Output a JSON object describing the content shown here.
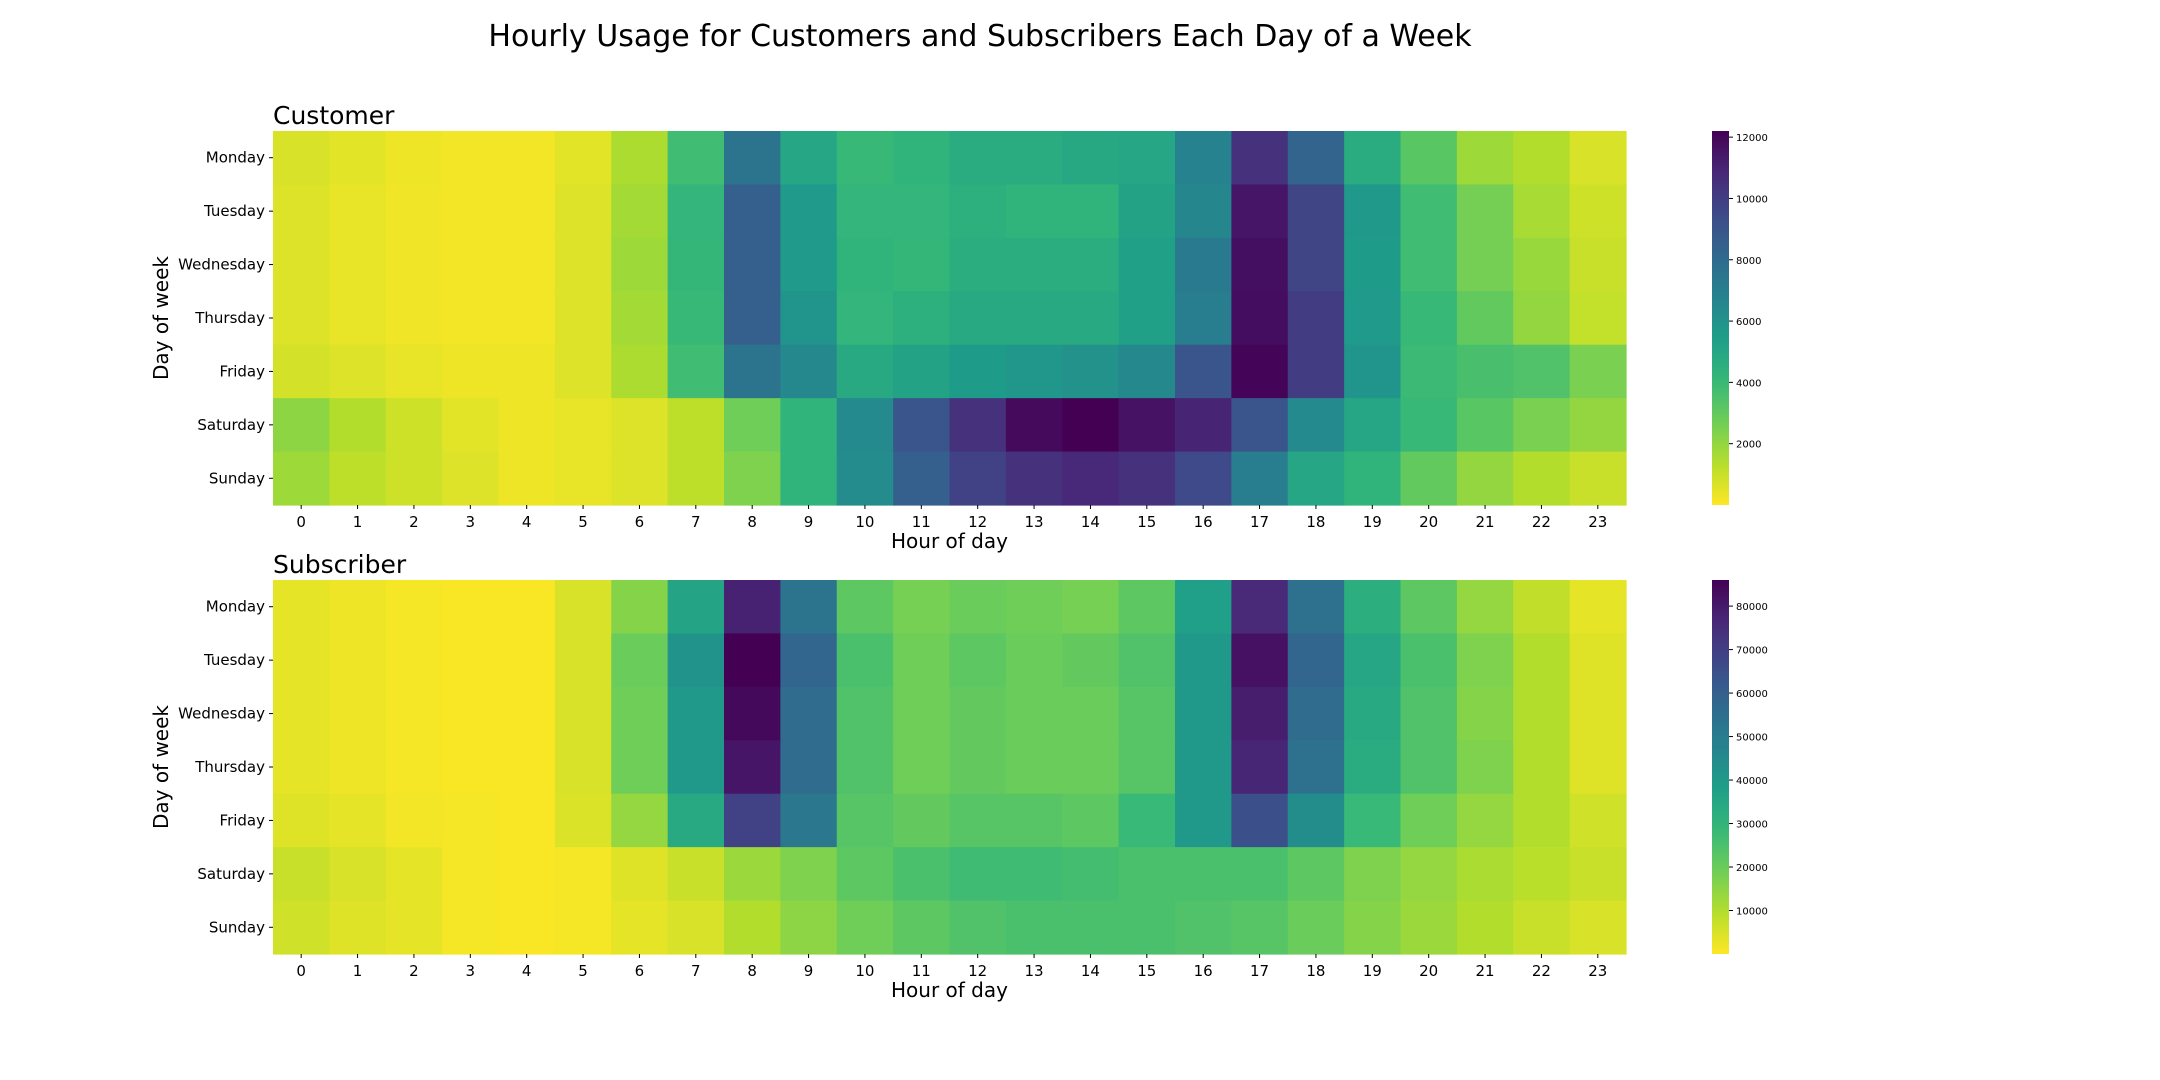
{
  "figure": {
    "title": "Hourly Usage for Customers and Subscribers Each Day of a Week"
  },
  "chart_data": [
    {
      "type": "heatmap",
      "title": "Customer",
      "xlabel": "Hour of day",
      "ylabel": "Day of week",
      "x": [
        "0",
        "1",
        "2",
        "3",
        "4",
        "5",
        "6",
        "7",
        "8",
        "9",
        "10",
        "11",
        "12",
        "13",
        "14",
        "15",
        "16",
        "17",
        "18",
        "19",
        "20",
        "21",
        "22",
        "23"
      ],
      "y": [
        "Monday",
        "Tuesday",
        "Wednesday",
        "Thursday",
        "Friday",
        "Saturday",
        "Sunday"
      ],
      "colormap": "viridis_r",
      "vmin": 0,
      "vmax": 12200,
      "colorbar_ticks": [
        2000,
        4000,
        6000,
        8000,
        10000,
        12000
      ],
      "values": [
        [
          700,
          500,
          300,
          200,
          200,
          500,
          1500,
          3800,
          7500,
          5000,
          4000,
          4300,
          4700,
          4700,
          4900,
          5000,
          6800,
          10500,
          8300,
          4700,
          3200,
          1800,
          1400,
          700
        ],
        [
          600,
          400,
          250,
          200,
          200,
          600,
          1700,
          4200,
          8500,
          5600,
          4200,
          4200,
          4500,
          4300,
          4300,
          5200,
          6600,
          11500,
          9700,
          5700,
          3800,
          2600,
          1600,
          900
        ],
        [
          600,
          400,
          250,
          200,
          200,
          600,
          1800,
          4100,
          8500,
          5600,
          4300,
          4100,
          4600,
          4600,
          4600,
          5300,
          7200,
          11700,
          9700,
          5500,
          3800,
          2600,
          1900,
          1000
        ],
        [
          600,
          400,
          250,
          200,
          200,
          600,
          1700,
          4000,
          8500,
          5900,
          4200,
          4500,
          4800,
          4800,
          4800,
          5300,
          7000,
          11800,
          10000,
          5600,
          4000,
          3000,
          2000,
          1100
        ],
        [
          800,
          600,
          400,
          300,
          300,
          600,
          1500,
          3800,
          7500,
          6500,
          4800,
          5200,
          5500,
          5800,
          6000,
          6500,
          9000,
          12100,
          10000,
          5900,
          3900,
          3600,
          3400,
          2500
        ],
        [
          2100,
          1400,
          900,
          500,
          300,
          400,
          600,
          1200,
          2700,
          4300,
          6400,
          9000,
          10500,
          11900,
          12200,
          11600,
          11000,
          9000,
          6400,
          5000,
          4000,
          3200,
          2500,
          2000
        ],
        [
          1800,
          1200,
          900,
          600,
          300,
          400,
          600,
          1200,
          2400,
          4300,
          6300,
          8500,
          9800,
          10500,
          10800,
          10500,
          9500,
          7000,
          5000,
          4300,
          3000,
          2000,
          1400,
          1000
        ]
      ]
    },
    {
      "type": "heatmap",
      "title": "Subscriber",
      "xlabel": "Hour of day",
      "ylabel": "Day of week",
      "x": [
        "0",
        "1",
        "2",
        "3",
        "4",
        "5",
        "6",
        "7",
        "8",
        "9",
        "10",
        "11",
        "12",
        "13",
        "14",
        "15",
        "16",
        "17",
        "18",
        "19",
        "20",
        "21",
        "22",
        "23"
      ],
      "y": [
        "Monday",
        "Tuesday",
        "Wednesday",
        "Thursday",
        "Friday",
        "Saturday",
        "Sunday"
      ],
      "colormap": "viridis_r",
      "vmin": 0,
      "vmax": 86000,
      "colorbar_ticks": [
        10000,
        20000,
        30000,
        40000,
        50000,
        60000,
        70000,
        80000
      ],
      "values": [
        [
          3000,
          2000,
          1000,
          500,
          500,
          5000,
          16000,
          36000,
          78000,
          53000,
          22000,
          18000,
          20000,
          19000,
          18000,
          22000,
          38000,
          76000,
          54000,
          32000,
          22000,
          14000,
          8000,
          3000
        ],
        [
          3000,
          2000,
          1000,
          500,
          500,
          5000,
          20000,
          42000,
          86000,
          58000,
          25000,
          19000,
          22000,
          20000,
          21000,
          24000,
          40000,
          82000,
          58000,
          35000,
          25000,
          17000,
          10000,
          4000
        ],
        [
          3000,
          2000,
          1000,
          500,
          500,
          5000,
          19000,
          40000,
          84000,
          56000,
          24000,
          19000,
          21000,
          20000,
          20000,
          23000,
          40000,
          79000,
          56000,
          34000,
          24000,
          16000,
          10000,
          4000
        ],
        [
          3000,
          2000,
          1000,
          500,
          500,
          5000,
          19000,
          40000,
          81000,
          56000,
          24000,
          19000,
          21000,
          20000,
          20000,
          23000,
          40000,
          77000,
          54000,
          33000,
          24000,
          17000,
          10000,
          4000
        ],
        [
          4000,
          3000,
          1500,
          1000,
          500,
          4500,
          14000,
          34000,
          69000,
          52000,
          23000,
          21000,
          23000,
          23000,
          22000,
          28000,
          40000,
          65000,
          44000,
          28000,
          19000,
          14000,
          10000,
          6000
        ],
        [
          7000,
          5000,
          3000,
          1000,
          500,
          1000,
          4000,
          7000,
          13000,
          17000,
          22000,
          25000,
          27000,
          27000,
          26000,
          25000,
          25000,
          25000,
          22000,
          17000,
          14000,
          11000,
          9000,
          7000
        ],
        [
          6000,
          4000,
          3000,
          1000,
          500,
          1000,
          3000,
          5000,
          10000,
          15000,
          19000,
          22000,
          24000,
          25000,
          25000,
          25000,
          24000,
          23000,
          20000,
          16000,
          13000,
          10000,
          7000,
          5000
        ]
      ]
    }
  ]
}
